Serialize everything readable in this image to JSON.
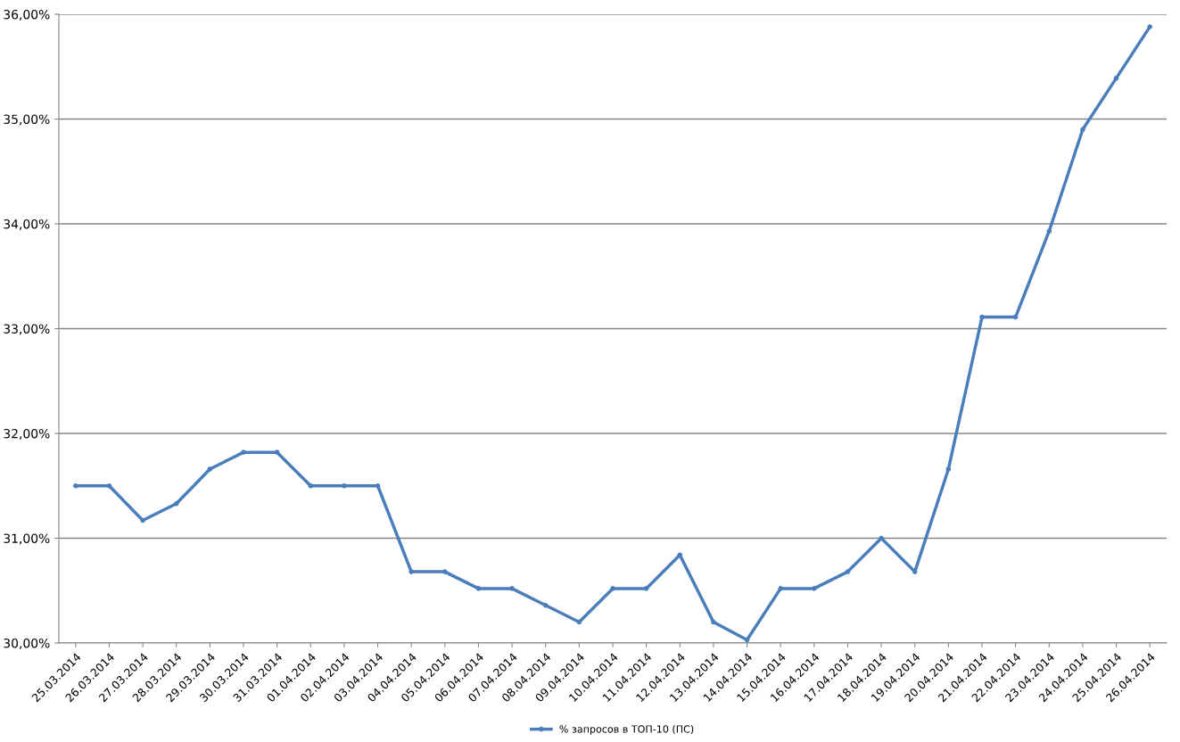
{
  "chart_data": {
    "type": "line",
    "categories": [
      "25.03.2014",
      "26.03.2014",
      "27.03.2014",
      "28.03.2014",
      "29.03.2014",
      "30.03.2014",
      "31.03.2014",
      "01.04.2014",
      "02.04.2014",
      "03.04.2014",
      "04.04.2014",
      "05.04.2014",
      "06.04.2014",
      "07.04.2014",
      "08.04.2014",
      "09.04.2014",
      "10.04.2014",
      "11.04.2014",
      "12.04.2014",
      "13.04.2014",
      "14.04.2014",
      "15.04.2014",
      "16.04.2014",
      "17.04.2014",
      "18.04.2014",
      "19.04.2014",
      "20.04.2014",
      "21.04.2014",
      "22.04.2014",
      "23.04.2014",
      "24.04.2014",
      "25.04.2014",
      "26.04.2014"
    ],
    "series": [
      {
        "name": "% запросов в ТОП-10 (ПС)",
        "color": "#4a7ebb",
        "values": [
          31.5,
          31.5,
          31.17,
          31.33,
          31.66,
          31.82,
          31.82,
          31.5,
          31.5,
          31.5,
          30.68,
          30.68,
          30.52,
          30.52,
          30.36,
          30.2,
          30.52,
          30.52,
          30.84,
          30.2,
          30.03,
          30.52,
          30.52,
          30.68,
          31.0,
          30.68,
          31.66,
          33.11,
          33.11,
          33.93,
          34.9,
          35.39,
          35.88
        ]
      }
    ],
    "ylim": [
      30,
      36
    ],
    "yticks": [
      {
        "value": 30,
        "label": "30,00%"
      },
      {
        "value": 31,
        "label": "31,00%"
      },
      {
        "value": 32,
        "label": "32,00%"
      },
      {
        "value": 33,
        "label": "33,00%"
      },
      {
        "value": 34,
        "label": "34,00%"
      },
      {
        "value": 35,
        "label": "35,00%"
      },
      {
        "value": 36,
        "label": "36,00%"
      }
    ],
    "grid": "y",
    "legend": "bottom",
    "marker": "circle",
    "line_style": "solid"
  }
}
